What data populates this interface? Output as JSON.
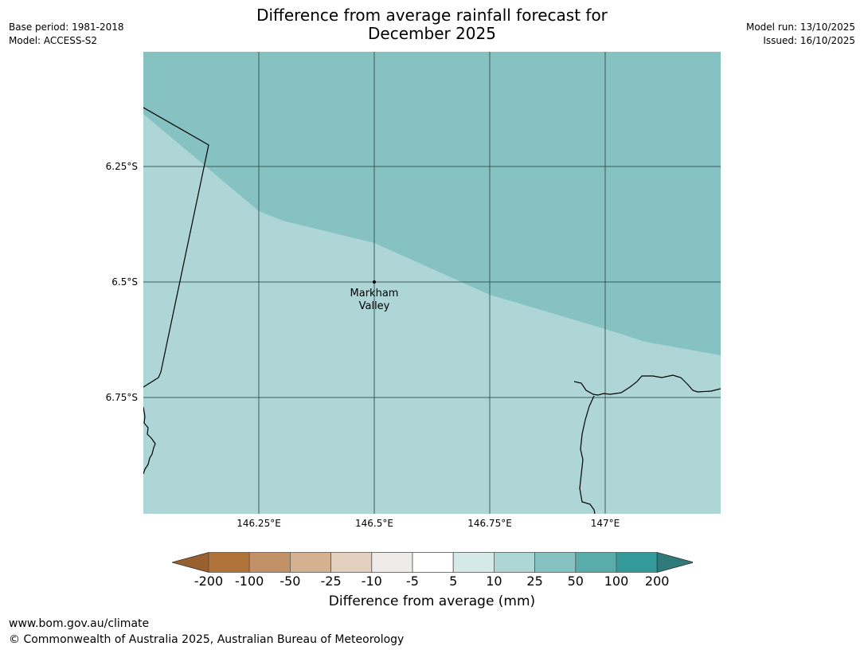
{
  "title_line1": "Difference from average rainfall forecast for",
  "title_line2": "December 2025",
  "meta": {
    "base_period": "Base period: 1981-2018",
    "model": "Model: ACCESS-S2",
    "model_run": "Model run: 13/10/2025",
    "issued": "Issued: 16/10/2025"
  },
  "map": {
    "latitudes": [
      "6.25°S",
      "6.5°S",
      "6.75°S"
    ],
    "longitudes": [
      "146.25°E",
      "146.5°E",
      "146.75°E",
      "147°E"
    ],
    "place": {
      "name_line1": "Markham",
      "name_line2": "Valley"
    },
    "colors": {
      "band_25_50": "#86c2c1",
      "band_10_25": "#aed6d6",
      "gridline": "#2b4746",
      "coast": "#000000"
    }
  },
  "colorbar": {
    "ticks": [
      "-200",
      "-100",
      "-50",
      "-25",
      "-10",
      "-5",
      "5",
      "10",
      "25",
      "50",
      "100",
      "200"
    ],
    "colors": [
      "#9a5f2f",
      "#af7239",
      "#c29167",
      "#d4b291",
      "#e4d0be",
      "#eeebe8",
      "#ffffff",
      "#d6e9e9",
      "#aed6d6",
      "#86c2c1",
      "#5aacab",
      "#33999a",
      "#2e7a79"
    ],
    "label": "Difference from average (mm)"
  },
  "footer": {
    "url": "www.bom.gov.au/climate",
    "copyright": "© Commonwealth of Australia 2025, Australian Bureau of Meteorology"
  }
}
